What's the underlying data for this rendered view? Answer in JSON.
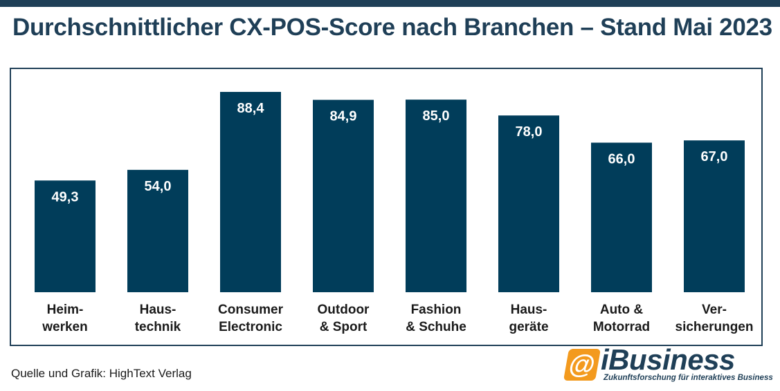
{
  "title": "Durchschnittlicher CX-POS-Score nach Branchen – Stand Mai 2023",
  "source": "Quelle und Grafik: HighText Verlag",
  "logo": {
    "name": "iBusiness",
    "tagline": "Zukunftsforschung für interaktives Business",
    "icon": "at-sign-icon",
    "accent": "#f39a1e"
  },
  "colors": {
    "bar": "#013d5a",
    "frame": "#1f3f57",
    "title": "#1f3f57"
  },
  "chart_data": {
    "type": "bar",
    "title": "Durchschnittlicher CX-POS-Score nach Branchen – Stand Mai 2023",
    "xlabel": "",
    "ylabel": "",
    "grid": false,
    "ylim": [
      0,
      100
    ],
    "categories": [
      [
        "Heim-",
        "werken"
      ],
      [
        "Haus-",
        "technik"
      ],
      [
        "Consumer",
        "Electronic"
      ],
      [
        "Outdoor",
        "& Sport"
      ],
      [
        "Fashion",
        "& Schuhe"
      ],
      [
        "Haus-",
        "geräte"
      ],
      [
        "Auto &",
        "Motorrad"
      ],
      [
        "Ver-",
        "sicherungen"
      ]
    ],
    "values": [
      49.3,
      54.0,
      88.4,
      84.9,
      85.0,
      78.0,
      66.0,
      67.0
    ],
    "value_labels": [
      "49,3",
      "54,0",
      "88,4",
      "84,9",
      "85,0",
      "78,0",
      "66,0",
      "67,0"
    ]
  }
}
